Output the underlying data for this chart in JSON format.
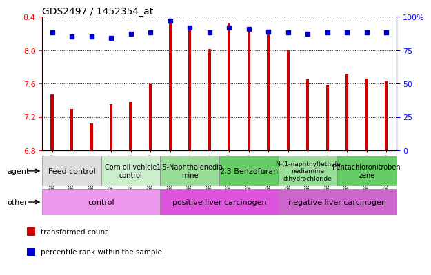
{
  "title": "GDS2497 / 1452354_at",
  "samples": [
    "GSM115690",
    "GSM115691",
    "GSM115692",
    "GSM115687",
    "GSM115688",
    "GSM115689",
    "GSM115693",
    "GSM115694",
    "GSM115695",
    "GSM115680",
    "GSM115696",
    "GSM115697",
    "GSM115681",
    "GSM115682",
    "GSM115683",
    "GSM115684",
    "GSM115685",
    "GSM115686"
  ],
  "bar_values": [
    7.47,
    7.3,
    7.12,
    7.35,
    7.38,
    7.59,
    8.37,
    8.25,
    8.01,
    8.33,
    8.27,
    8.2,
    8.0,
    7.65,
    7.58,
    7.72,
    7.66,
    7.63
  ],
  "percentile_values": [
    88,
    85,
    85,
    84,
    87,
    88,
    97,
    92,
    88,
    92,
    91,
    89,
    88,
    87,
    88,
    88,
    88,
    88
  ],
  "ylim_left": [
    6.8,
    8.4
  ],
  "ylim_right": [
    0,
    100
  ],
  "yticks_left": [
    6.8,
    7.2,
    7.6,
    8.0,
    8.4
  ],
  "yticks_right": [
    0,
    25,
    50,
    75,
    100
  ],
  "ytick_labels_right": [
    "0",
    "25",
    "50",
    "75",
    "100%"
  ],
  "bar_color": "#cc0000",
  "percentile_color": "#0000cc",
  "bar_bottom": 6.8,
  "agent_groups": [
    {
      "label": "Feed control",
      "start": 0,
      "end": 3,
      "color": "#dddddd",
      "fontsize": 8
    },
    {
      "label": "Corn oil vehicle\ncontrol",
      "start": 3,
      "end": 6,
      "color": "#cceecc",
      "fontsize": 7
    },
    {
      "label": "1,5-Naphthalenedia\nmine",
      "start": 6,
      "end": 9,
      "color": "#99dd99",
      "fontsize": 7
    },
    {
      "label": "2,3-Benzofuran",
      "start": 9,
      "end": 12,
      "color": "#66cc66",
      "fontsize": 8
    },
    {
      "label": "N-(1-naphthyl)ethyle\nnediamine\ndihydrochloride",
      "start": 12,
      "end": 15,
      "color": "#99dd99",
      "fontsize": 6.5
    },
    {
      "label": "Pentachloronitroben\nzene",
      "start": 15,
      "end": 18,
      "color": "#66cc66",
      "fontsize": 7
    }
  ],
  "other_groups": [
    {
      "label": "control",
      "start": 0,
      "end": 6,
      "color": "#ee99ee"
    },
    {
      "label": "positive liver carcinogen",
      "start": 6,
      "end": 12,
      "color": "#dd55dd"
    },
    {
      "label": "negative liver carcinogen",
      "start": 12,
      "end": 18,
      "color": "#cc66cc"
    }
  ],
  "legend_items": [
    {
      "label": "transformed count",
      "color": "#cc0000"
    },
    {
      "label": "percentile rank within the sample",
      "color": "#0000cc"
    }
  ],
  "left_label_color": "red",
  "right_label_color": "blue",
  "grid_color": "black",
  "tick_label_fontsize": 8,
  "sample_fontsize": 6.5,
  "title_fontsize": 10
}
